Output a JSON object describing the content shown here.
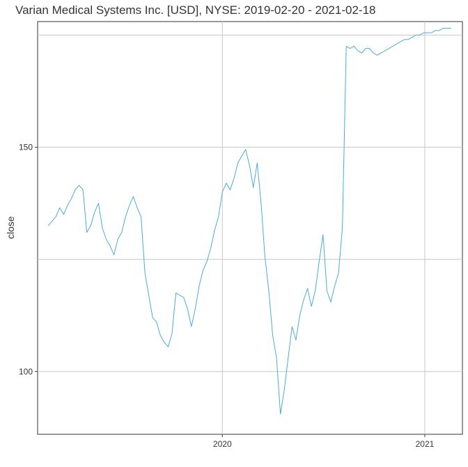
{
  "chart_data": {
    "type": "line",
    "title": "Varian Medical Systems Inc. [USD], NYSE: 2019-02-20 - 2021-02-18",
    "xlabel": "",
    "ylabel": "close",
    "xlim": [
      "2019-02-01",
      "2021-03-10"
    ],
    "ylim": [
      86,
      178
    ],
    "grid": true,
    "legend": "none",
    "line_color": "#4DAAD8",
    "x_ticks": [
      {
        "value": "2020-01-01",
        "label": "2020"
      },
      {
        "value": "2021-01-01",
        "label": "2021"
      }
    ],
    "y_ticks": [
      {
        "value": 100,
        "label": "100"
      },
      {
        "value": 150,
        "label": "150"
      }
    ],
    "y_minor_gridlines": [
      125,
      175
    ],
    "series": [
      {
        "points": [
          [
            "2019-02-20",
            132.5
          ],
          [
            "2019-02-27",
            133.5
          ],
          [
            "2019-03-06",
            134.5
          ],
          [
            "2019-03-13",
            136.5
          ],
          [
            "2019-03-20",
            135.0
          ],
          [
            "2019-03-27",
            137.0
          ],
          [
            "2019-04-03",
            138.5
          ],
          [
            "2019-04-10",
            140.5
          ],
          [
            "2019-04-17",
            141.5
          ],
          [
            "2019-04-24",
            140.5
          ],
          [
            "2019-05-01",
            131.0
          ],
          [
            "2019-05-08",
            132.5
          ],
          [
            "2019-05-15",
            135.5
          ],
          [
            "2019-05-22",
            137.5
          ],
          [
            "2019-05-29",
            132.0
          ],
          [
            "2019-06-05",
            129.5
          ],
          [
            "2019-06-12",
            128.0
          ],
          [
            "2019-06-19",
            126.0
          ],
          [
            "2019-06-26",
            129.5
          ],
          [
            "2019-07-03",
            131.0
          ],
          [
            "2019-07-10",
            134.5
          ],
          [
            "2019-07-17",
            137.0
          ],
          [
            "2019-07-24",
            139.0
          ],
          [
            "2019-07-31",
            136.5
          ],
          [
            "2019-08-07",
            134.5
          ],
          [
            "2019-08-14",
            122.0
          ],
          [
            "2019-08-21",
            117.0
          ],
          [
            "2019-08-28",
            112.0
          ],
          [
            "2019-09-04",
            111.0
          ],
          [
            "2019-09-11",
            108.0
          ],
          [
            "2019-09-18",
            106.5
          ],
          [
            "2019-09-25",
            105.5
          ],
          [
            "2019-10-02",
            108.5
          ],
          [
            "2019-10-09",
            117.5
          ],
          [
            "2019-10-16",
            117.0
          ],
          [
            "2019-10-23",
            116.5
          ],
          [
            "2019-10-30",
            114.0
          ],
          [
            "2019-11-06",
            110.0
          ],
          [
            "2019-11-13",
            114.0
          ],
          [
            "2019-11-20",
            119.0
          ],
          [
            "2019-11-27",
            122.5
          ],
          [
            "2019-12-04",
            124.5
          ],
          [
            "2019-12-11",
            127.5
          ],
          [
            "2019-12-18",
            131.5
          ],
          [
            "2019-12-25",
            134.5
          ],
          [
            "2020-01-01",
            140.0
          ],
          [
            "2020-01-08",
            142.0
          ],
          [
            "2020-01-15",
            140.5
          ],
          [
            "2020-01-22",
            143.0
          ],
          [
            "2020-01-29",
            146.5
          ],
          [
            "2020-02-05",
            148.0
          ],
          [
            "2020-02-12",
            149.5
          ],
          [
            "2020-02-19",
            146.0
          ],
          [
            "2020-02-26",
            141.0
          ],
          [
            "2020-03-04",
            146.5
          ],
          [
            "2020-03-11",
            137.5
          ],
          [
            "2020-03-18",
            125.5
          ],
          [
            "2020-03-25",
            118.0
          ],
          [
            "2020-04-01",
            108.0
          ],
          [
            "2020-04-08",
            103.0
          ],
          [
            "2020-04-15",
            90.5
          ],
          [
            "2020-04-22",
            96.0
          ],
          [
            "2020-04-29",
            103.0
          ],
          [
            "2020-05-06",
            110.0
          ],
          [
            "2020-05-13",
            107.0
          ],
          [
            "2020-05-20",
            112.5
          ],
          [
            "2020-05-27",
            116.0
          ],
          [
            "2020-06-03",
            118.5
          ],
          [
            "2020-06-10",
            114.5
          ],
          [
            "2020-06-17",
            118.0
          ],
          [
            "2020-06-24",
            124.5
          ],
          [
            "2020-07-01",
            130.5
          ],
          [
            "2020-07-08",
            118.0
          ],
          [
            "2020-07-15",
            115.5
          ],
          [
            "2020-07-22",
            119.0
          ],
          [
            "2020-07-29",
            122.0
          ],
          [
            "2020-08-05",
            132.0
          ],
          [
            "2020-08-12",
            172.5
          ],
          [
            "2020-08-19",
            172.0
          ],
          [
            "2020-08-26",
            172.5
          ],
          [
            "2020-09-02",
            171.5
          ],
          [
            "2020-09-09",
            171.0
          ],
          [
            "2020-09-16",
            172.0
          ],
          [
            "2020-09-23",
            172.0
          ],
          [
            "2020-09-30",
            171.0
          ],
          [
            "2020-10-07",
            170.5
          ],
          [
            "2020-10-14",
            171.0
          ],
          [
            "2020-10-21",
            171.5
          ],
          [
            "2020-10-28",
            172.0
          ],
          [
            "2020-11-04",
            172.5
          ],
          [
            "2020-11-11",
            173.0
          ],
          [
            "2020-11-18",
            173.5
          ],
          [
            "2020-11-25",
            174.0
          ],
          [
            "2020-12-02",
            174.0
          ],
          [
            "2020-12-09",
            174.5
          ],
          [
            "2020-12-16",
            175.0
          ],
          [
            "2020-12-23",
            175.0
          ],
          [
            "2020-12-30",
            175.5
          ],
          [
            "2021-01-06",
            175.5
          ],
          [
            "2021-01-13",
            175.5
          ],
          [
            "2021-01-20",
            176.0
          ],
          [
            "2021-01-27",
            176.0
          ],
          [
            "2021-02-03",
            176.5
          ],
          [
            "2021-02-10",
            176.5
          ],
          [
            "2021-02-18",
            176.5
          ]
        ]
      }
    ]
  }
}
